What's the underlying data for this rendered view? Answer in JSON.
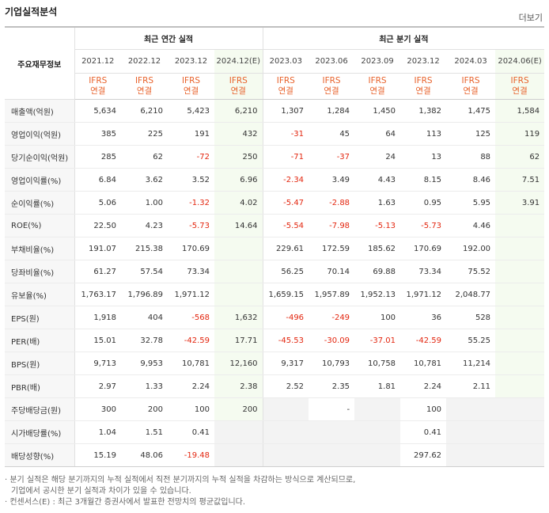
{
  "title": "기업실적분석",
  "more": "더보기",
  "header": {
    "label": "주요재무정보",
    "annual_group": "최근 연간 실적",
    "quarter_group": "최근 분기 실적",
    "periods": [
      "2021.12",
      "2022.12",
      "2023.12",
      "2024.12(E)",
      "2023.03",
      "2023.06",
      "2023.09",
      "2023.12",
      "2024.03",
      "2024.06(E)"
    ],
    "basis_line1": "IFRS",
    "basis_line2": "연결"
  },
  "rows": [
    {
      "label": "매출액(억원)",
      "values": [
        "5,634",
        "6,210",
        "5,423",
        "6,210",
        "1,307",
        "1,284",
        "1,450",
        "1,382",
        "1,475",
        "1,584"
      ]
    },
    {
      "label": "영업이익(억원)",
      "values": [
        "385",
        "225",
        "191",
        "432",
        "-31",
        "45",
        "64",
        "113",
        "125",
        "119"
      ]
    },
    {
      "label": "당기순이익(억원)",
      "values": [
        "285",
        "62",
        "-72",
        "250",
        "-71",
        "-37",
        "24",
        "13",
        "88",
        "62"
      ]
    },
    {
      "label": "영업이익률(%)",
      "values": [
        "6.84",
        "3.62",
        "3.52",
        "6.96",
        "-2.34",
        "3.49",
        "4.43",
        "8.15",
        "8.46",
        "7.51"
      ]
    },
    {
      "label": "순이익률(%)",
      "values": [
        "5.06",
        "1.00",
        "-1.32",
        "4.02",
        "-5.47",
        "-2.88",
        "1.63",
        "0.95",
        "5.95",
        "3.91"
      ]
    },
    {
      "label": "ROE(%)",
      "values": [
        "22.50",
        "4.23",
        "-5.73",
        "14.64",
        "-5.54",
        "-7.98",
        "-5.13",
        "-5.73",
        "4.46",
        ""
      ]
    },
    {
      "label": "부채비율(%)",
      "values": [
        "191.07",
        "215.38",
        "170.69",
        "",
        "229.61",
        "172.59",
        "185.62",
        "170.69",
        "192.00",
        ""
      ]
    },
    {
      "label": "당좌비율(%)",
      "values": [
        "61.27",
        "57.54",
        "73.34",
        "",
        "56.25",
        "70.14",
        "69.88",
        "73.34",
        "75.52",
        ""
      ]
    },
    {
      "label": "유보율(%)",
      "values": [
        "1,763.17",
        "1,796.89",
        "1,971.12",
        "",
        "1,659.15",
        "1,957.89",
        "1,952.13",
        "1,971.12",
        "2,048.77",
        ""
      ]
    },
    {
      "label": "EPS(원)",
      "values": [
        "1,918",
        "404",
        "-568",
        "1,632",
        "-496",
        "-249",
        "100",
        "36",
        "528",
        ""
      ]
    },
    {
      "label": "PER(배)",
      "values": [
        "15.01",
        "32.78",
        "-42.59",
        "17.71",
        "-45.53",
        "-30.09",
        "-37.01",
        "-42.59",
        "55.25",
        ""
      ]
    },
    {
      "label": "BPS(원)",
      "values": [
        "9,713",
        "9,953",
        "10,781",
        "12,160",
        "9,317",
        "10,793",
        "10,758",
        "10,781",
        "11,214",
        ""
      ]
    },
    {
      "label": "PBR(배)",
      "values": [
        "2.97",
        "1.33",
        "2.24",
        "2.38",
        "2.52",
        "2.35",
        "1.81",
        "2.24",
        "2.11",
        ""
      ]
    },
    {
      "label": "주당배당금(원)",
      "values": [
        "300",
        "200",
        "100",
        "200",
        "",
        "-",
        "",
        "100",
        "",
        ""
      ]
    },
    {
      "label": "시가배당률(%)",
      "values": [
        "1.04",
        "1.51",
        "0.41",
        "",
        "",
        "",
        "",
        "0.41",
        "",
        ""
      ]
    },
    {
      "label": "배당성향(%)",
      "values": [
        "15.19",
        "48.06",
        "-19.48",
        "",
        "",
        "",
        "",
        "297.62",
        "",
        ""
      ]
    }
  ],
  "notes": [
    "· 분기 실적은 해당 분기까지의 누적 실적에서 직전 분기까지의 누적 실적을 차감하는 방식으로 계산되므로,",
    "  기업에서 공시한 분기 실적과 차이가 있을 수 있습니다.",
    "· 컨센서스(E) : 최근 3개월간 증권사에서 발표한 전망치의 평균값입니다."
  ]
}
